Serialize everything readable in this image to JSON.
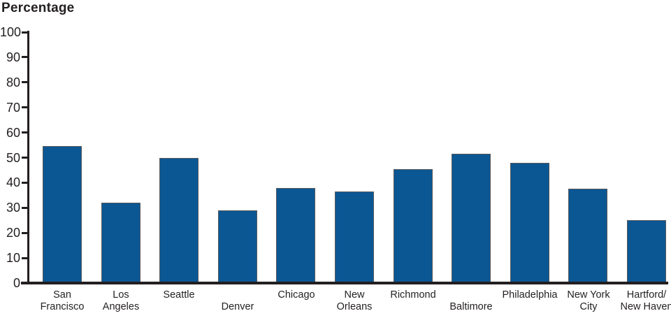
{
  "chart_data": {
    "type": "bar",
    "title": "Percentage",
    "ylabel": "Percentage",
    "xlabel": "",
    "categories": [
      "San Francisco",
      "Los Angeles",
      "Seattle",
      "Denver",
      "Chicago",
      "New Orleans",
      "Richmond",
      "Baltimore",
      "Philadelphia",
      "New York City",
      "Hartford/New Haven"
    ],
    "category_display_lines": [
      [
        "San",
        "Francisco"
      ],
      [
        "Los",
        "Angeles"
      ],
      [
        "Seattle",
        ""
      ],
      [
        "",
        "Denver"
      ],
      [
        "Chicago",
        ""
      ],
      [
        "New",
        "Orleans"
      ],
      [
        "Richmond",
        ""
      ],
      [
        "",
        "Baltimore"
      ],
      [
        "Philadelphia",
        ""
      ],
      [
        "New York",
        "City"
      ],
      [
        "Hartford/",
        "New Haven"
      ]
    ],
    "values": [
      54.5,
      32,
      50,
      29,
      38,
      36.5,
      45.5,
      51.5,
      48,
      37.5,
      25
    ],
    "ylim": [
      0,
      100
    ],
    "yticks": [
      0,
      10,
      20,
      30,
      40,
      50,
      60,
      70,
      80,
      90,
      100
    ],
    "grid": false,
    "legend": false,
    "colors": {
      "bar_fill": "#0B5794",
      "bar_edge": "#58595B",
      "axis": "#231F20",
      "text": "#231F20",
      "background": "#FFFFFF"
    }
  }
}
